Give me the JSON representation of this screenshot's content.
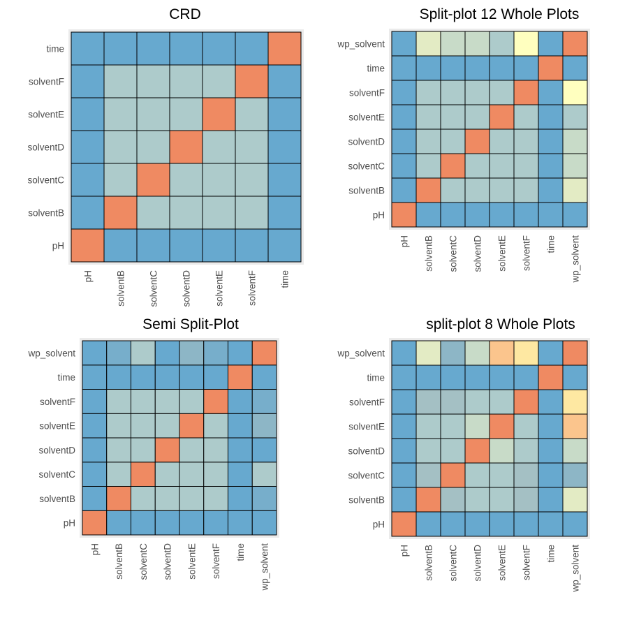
{
  "colors": {
    "c1": "#67a9cf",
    "c2": "#77aecb",
    "c3": "#8db6c6",
    "c4": "#a4c0c4",
    "c5": "#adcbcb",
    "c6": "#c8dbc8",
    "c7": "#e3ebc4",
    "c8": "#ffffbf",
    "c9": "#fee8a2",
    "c10": "#fbc58d",
    "c11": "#ef8a62"
  },
  "chart_data": [
    {
      "type": "heatmap",
      "title": "CRD",
      "xlabel": "",
      "ylabel": "",
      "x_labels": [
        "pH",
        "solventB",
        "solventC",
        "solventD",
        "solventE",
        "solventF",
        "time"
      ],
      "y_labels": [
        "pH",
        "solventB",
        "solventC",
        "solventD",
        "solventE",
        "solventF",
        "time"
      ],
      "values": [
        [
          "c11",
          "c1",
          "c1",
          "c1",
          "c1",
          "c1",
          "c1"
        ],
        [
          "c1",
          "c11",
          "c5",
          "c5",
          "c5",
          "c5",
          "c1"
        ],
        [
          "c1",
          "c5",
          "c11",
          "c5",
          "c5",
          "c5",
          "c1"
        ],
        [
          "c1",
          "c5",
          "c5",
          "c11",
          "c5",
          "c5",
          "c1"
        ],
        [
          "c1",
          "c5",
          "c5",
          "c5",
          "c11",
          "c5",
          "c1"
        ],
        [
          "c1",
          "c5",
          "c5",
          "c5",
          "c5",
          "c11",
          "c1"
        ],
        [
          "c1",
          "c1",
          "c1",
          "c1",
          "c1",
          "c1",
          "c11"
        ]
      ]
    },
    {
      "type": "heatmap",
      "title": "Split-plot 12 Whole Plots",
      "xlabel": "",
      "ylabel": "",
      "x_labels": [
        "pH",
        "solventB",
        "solventC",
        "solventD",
        "solventE",
        "solventF",
        "time",
        "wp_solvent"
      ],
      "y_labels": [
        "pH",
        "solventB",
        "solventC",
        "solventD",
        "solventE",
        "solventF",
        "time",
        "wp_solvent"
      ],
      "values": [
        [
          "c11",
          "c1",
          "c1",
          "c1",
          "c1",
          "c1",
          "c1",
          "c1"
        ],
        [
          "c1",
          "c11",
          "c5",
          "c5",
          "c5",
          "c5",
          "c1",
          "c7"
        ],
        [
          "c1",
          "c5",
          "c11",
          "c5",
          "c5",
          "c5",
          "c1",
          "c6"
        ],
        [
          "c1",
          "c5",
          "c5",
          "c11",
          "c5",
          "c5",
          "c1",
          "c6"
        ],
        [
          "c1",
          "c5",
          "c5",
          "c5",
          "c11",
          "c5",
          "c1",
          "c5"
        ],
        [
          "c1",
          "c5",
          "c5",
          "c5",
          "c5",
          "c11",
          "c1",
          "c8"
        ],
        [
          "c1",
          "c1",
          "c1",
          "c1",
          "c1",
          "c1",
          "c11",
          "c1"
        ],
        [
          "c1",
          "c7",
          "c6",
          "c6",
          "c5",
          "c8",
          "c1",
          "c11"
        ]
      ]
    },
    {
      "type": "heatmap",
      "title": "Semi Split-Plot",
      "xlabel": "",
      "ylabel": "",
      "x_labels": [
        "pH",
        "solventB",
        "solventC",
        "solventD",
        "solventE",
        "solventF",
        "time",
        "wp_solvent"
      ],
      "y_labels": [
        "pH",
        "solventB",
        "solventC",
        "solventD",
        "solventE",
        "solventF",
        "time",
        "wp_solvent"
      ],
      "values": [
        [
          "c11",
          "c1",
          "c1",
          "c1",
          "c1",
          "c1",
          "c1",
          "c1"
        ],
        [
          "c1",
          "c11",
          "c5",
          "c5",
          "c5",
          "c5",
          "c1",
          "c2"
        ],
        [
          "c1",
          "c5",
          "c11",
          "c5",
          "c5",
          "c5",
          "c1",
          "c5"
        ],
        [
          "c1",
          "c5",
          "c5",
          "c11",
          "c5",
          "c5",
          "c1",
          "c1"
        ],
        [
          "c1",
          "c5",
          "c5",
          "c5",
          "c11",
          "c5",
          "c1",
          "c3"
        ],
        [
          "c1",
          "c5",
          "c5",
          "c5",
          "c5",
          "c11",
          "c1",
          "c2"
        ],
        [
          "c1",
          "c1",
          "c1",
          "c1",
          "c1",
          "c1",
          "c11",
          "c1"
        ],
        [
          "c1",
          "c2",
          "c5",
          "c1",
          "c3",
          "c2",
          "c1",
          "c11"
        ]
      ]
    },
    {
      "type": "heatmap",
      "title": "split-plot 8 Whole Plots",
      "xlabel": "",
      "ylabel": "",
      "x_labels": [
        "pH",
        "solventB",
        "solventC",
        "solventD",
        "solventE",
        "solventF",
        "time",
        "wp_solvent"
      ],
      "y_labels": [
        "pH",
        "solventB",
        "solventC",
        "solventD",
        "solventE",
        "solventF",
        "time",
        "wp_solvent"
      ],
      "values": [
        [
          "c11",
          "c1",
          "c1",
          "c1",
          "c1",
          "c1",
          "c1",
          "c1"
        ],
        [
          "c1",
          "c11",
          "c4",
          "c5",
          "c5",
          "c4",
          "c1",
          "c7"
        ],
        [
          "c1",
          "c4",
          "c11",
          "c5",
          "c5",
          "c4",
          "c1",
          "c3"
        ],
        [
          "c1",
          "c5",
          "c5",
          "c11",
          "c6",
          "c5",
          "c1",
          "c6"
        ],
        [
          "c1",
          "c5",
          "c5",
          "c6",
          "c11",
          "c5",
          "c1",
          "c10"
        ],
        [
          "c1",
          "c4",
          "c4",
          "c5",
          "c5",
          "c11",
          "c1",
          "c9"
        ],
        [
          "c1",
          "c1",
          "c1",
          "c1",
          "c1",
          "c1",
          "c11",
          "c1"
        ],
        [
          "c1",
          "c7",
          "c3",
          "c6",
          "c10",
          "c9",
          "c1",
          "c11"
        ]
      ]
    }
  ]
}
